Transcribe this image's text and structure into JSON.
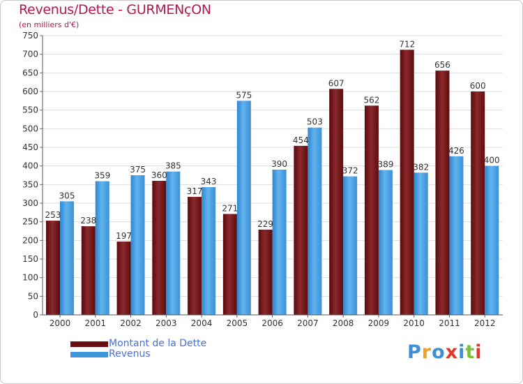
{
  "title": "Revenus/Dette - GURMENçON",
  "subtitle": "(en milliers d'€)",
  "colors": {
    "dette": "#6b0d10",
    "dette_light": "#8a2a2c",
    "revenus": "#3d95dc",
    "revenus_light": "#5aaeea",
    "title": "#b4174e",
    "legend_text": "#4a6fd6"
  },
  "legend": [
    {
      "label": "Montant de la Dette",
      "color": "#6b0d10"
    },
    {
      "label": "Revenus",
      "color": "#3d95dc"
    }
  ],
  "logo": {
    "letters": [
      "P",
      "r",
      "o",
      "x",
      "i",
      "t",
      "i"
    ],
    "colors": [
      "#3d8fd6",
      "#f0a020",
      "#3d8fd6",
      "#e0372a",
      "#3d8fd6",
      "#7ac143",
      "#e0372a"
    ]
  },
  "chart_data": {
    "type": "bar",
    "categories": [
      "2000",
      "2001",
      "2002",
      "2003",
      "2004",
      "2005",
      "2006",
      "2007",
      "2008",
      "2009",
      "2010",
      "2011",
      "2012"
    ],
    "series": [
      {
        "name": "Montant de la Dette",
        "values": [
          253,
          238,
          197,
          360,
          317,
          271,
          229,
          454,
          607,
          562,
          712,
          656,
          600
        ]
      },
      {
        "name": "Revenus",
        "values": [
          305,
          359,
          375,
          385,
          343,
          575,
          390,
          503,
          372,
          389,
          382,
          426,
          400
        ]
      }
    ],
    "title": "Revenus/Dette - GURMENçON",
    "subtitle": "(en milliers d'€)",
    "ylim": [
      0,
      750
    ],
    "yticks": [
      0,
      50,
      100,
      150,
      200,
      250,
      300,
      350,
      400,
      450,
      500,
      550,
      600,
      650,
      700,
      750
    ],
    "grid": true,
    "legend_position": "bottom-left"
  }
}
